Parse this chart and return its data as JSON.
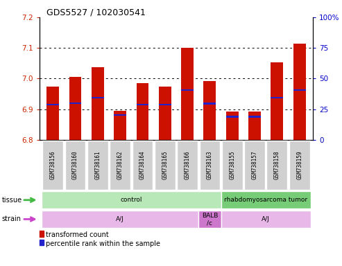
{
  "title": "GDS5527 / 102030541",
  "samples": [
    "GSM738156",
    "GSM738160",
    "GSM738161",
    "GSM738162",
    "GSM738164",
    "GSM738165",
    "GSM738166",
    "GSM738163",
    "GSM738155",
    "GSM738157",
    "GSM738158",
    "GSM738159"
  ],
  "bar_tops": [
    6.975,
    7.005,
    7.038,
    6.895,
    6.985,
    6.975,
    7.1,
    6.992,
    6.892,
    6.892,
    7.053,
    7.113
  ],
  "bar_bottoms": [
    6.8,
    6.8,
    6.8,
    6.8,
    6.8,
    6.8,
    6.8,
    6.8,
    6.8,
    6.8,
    6.8,
    6.8
  ],
  "blue_positions": [
    6.912,
    6.917,
    6.935,
    6.878,
    6.912,
    6.912,
    6.96,
    6.915,
    6.873,
    6.873,
    6.935,
    6.96
  ],
  "blue_heights": [
    0.006,
    0.006,
    0.006,
    0.006,
    0.006,
    0.006,
    0.006,
    0.006,
    0.006,
    0.006,
    0.006,
    0.006
  ],
  "ylim": [
    6.8,
    7.2
  ],
  "yticks_left": [
    6.8,
    6.9,
    7.0,
    7.1,
    7.2
  ],
  "yticks_right": [
    0,
    25,
    50,
    75,
    100
  ],
  "bar_color": "#cc1100",
  "blue_color": "#2222cc",
  "tissue_groups": [
    {
      "label": "control",
      "start": 0,
      "end": 8,
      "color": "#b8e8b8"
    },
    {
      "label": "rhabdomyosarcoma tumor",
      "start": 8,
      "end": 12,
      "color": "#77cc77"
    }
  ],
  "strain_groups": [
    {
      "label": "A/J",
      "start": 0,
      "end": 7,
      "color": "#e8b8e8"
    },
    {
      "label": "BALB\n/c",
      "start": 7,
      "end": 8,
      "color": "#cc77cc"
    },
    {
      "label": "A/J",
      "start": 8,
      "end": 12,
      "color": "#e8b8e8"
    }
  ],
  "bar_width": 0.55,
  "ylabel_left_color": "#cc2200",
  "ylabel_right_color": "#0000cc",
  "tick_fontsize": 7.5,
  "label_tissue": "tissue",
  "label_strain": "strain",
  "legend_items": [
    "transformed count",
    "percentile rank within the sample"
  ],
  "arrow_tissue_color": "#44bb44",
  "arrow_strain_color": "#cc44cc"
}
